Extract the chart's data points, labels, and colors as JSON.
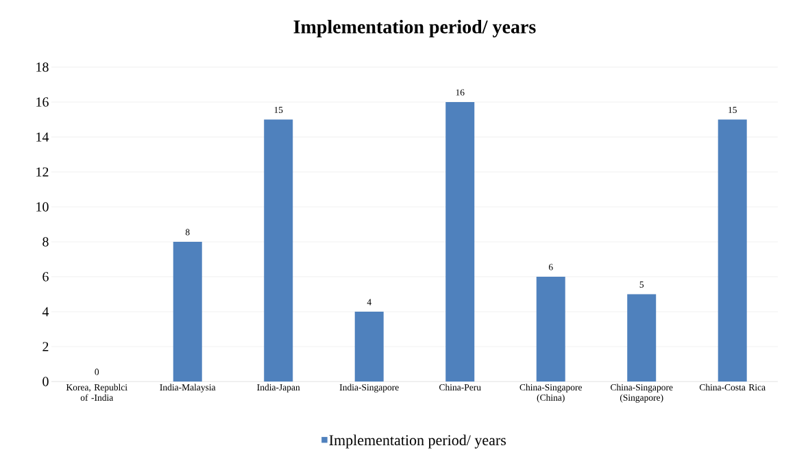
{
  "chart_data": {
    "type": "bar",
    "title": "Implementation period/ years",
    "categories": [
      "Korea, Republci of -India",
      "India-Malaysia",
      "India-Japan",
      "India-Singapore",
      "China-Peru",
      "China-Singapore (China)",
      "China-Singapore (Singapore)",
      "China-Costa Rica"
    ],
    "series": [
      {
        "name": "Implementation period/ years",
        "color": "#4f81bd",
        "values": [
          0,
          8,
          15,
          4,
          16,
          6,
          5,
          15
        ]
      }
    ],
    "ylim": [
      0,
      18
    ],
    "yticks": [
      0,
      2,
      4,
      6,
      8,
      10,
      12,
      14,
      16,
      18
    ],
    "grid": "y",
    "legend": "bottom",
    "data_labels": true
  }
}
